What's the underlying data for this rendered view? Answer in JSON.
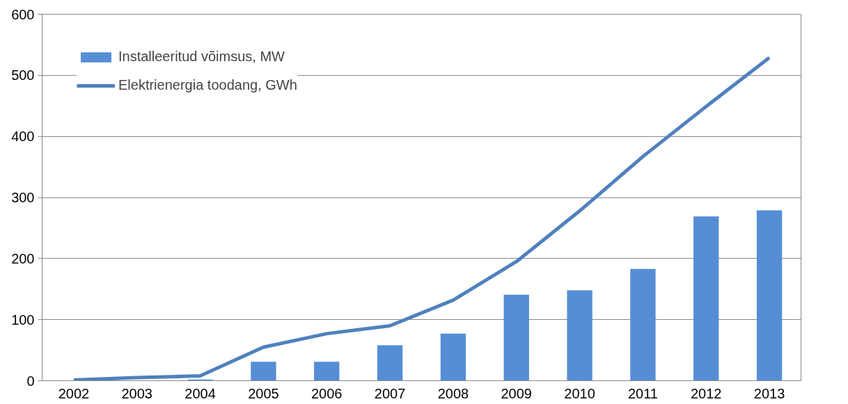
{
  "chart_data": {
    "type": "bar",
    "categories": [
      "2002",
      "2003",
      "2004",
      "2005",
      "2006",
      "2007",
      "2008",
      "2009",
      "2010",
      "2011",
      "2012",
      "2013"
    ],
    "series": [
      {
        "name": "Installeeritud võimsus, MW",
        "color": "#558ed5",
        "values": [
          null,
          null,
          2,
          31,
          31,
          58,
          77,
          141,
          148,
          183,
          269,
          279
        ]
      },
      {
        "name": "Elektrienergia toodang, GWh",
        "type": "line",
        "color": "#4f81bd",
        "values": [
          1,
          5,
          8,
          55,
          77,
          90,
          132,
          195,
          278,
          367,
          449,
          529
        ]
      }
    ],
    "ylim": [
      0,
      600
    ],
    "yticks": [
      0,
      100,
      200,
      300,
      400,
      500,
      600
    ],
    "grid": "y",
    "legend": "top left"
  }
}
